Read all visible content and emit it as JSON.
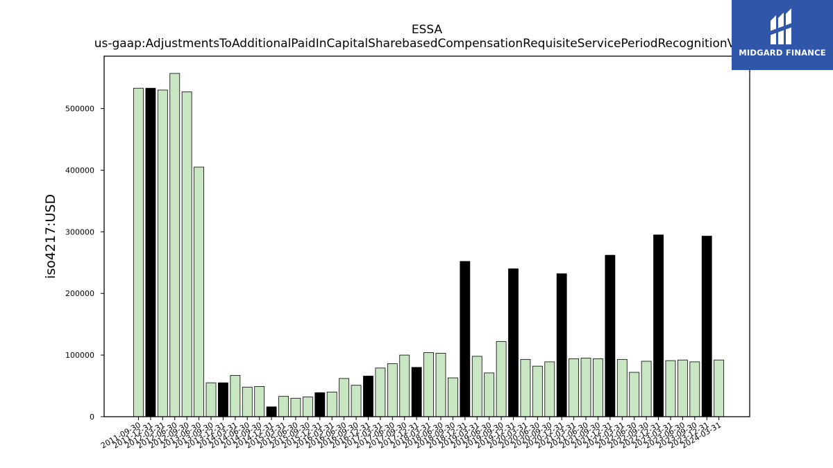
{
  "brand": {
    "name": "MIDGARD FINANCE",
    "bg_color": "#2f56a8"
  },
  "chart_data": {
    "type": "bar",
    "title": "ESSA",
    "subtitle": "us-gaap:AdjustmentsToAdditionalPaidInCapitalSharebasedCompensationRequisiteServicePeriodRecognitionValue",
    "xlabel": "",
    "ylabel": "iso4217:USD",
    "ylim": [
      0,
      585000
    ],
    "yticks": [
      0,
      100000,
      200000,
      300000,
      400000,
      500000
    ],
    "grid": false,
    "colors": {
      "default": "#c8e6c2",
      "highlight": "#000000",
      "edge": "#000000"
    },
    "categories": [
      "2011-09-30",
      "2011-12-31",
      "2012-03-31",
      "2012-06-30",
      "2012-09-30",
      "2013-06-30",
      "2013-09-30",
      "2013-12-31",
      "2014-03-31",
      "2014-06-30",
      "2014-09-30",
      "2014-12-31",
      "2015-03-31",
      "2015-06-30",
      "2015-09-30",
      "2015-12-31",
      "2016-03-31",
      "2016-06-30",
      "2016-09-30",
      "2016-12-31",
      "2017-03-31",
      "2017-06-30",
      "2017-09-30",
      "2017-12-31",
      "2018-03-31",
      "2018-06-30",
      "2018-09-30",
      "2018-12-31",
      "2019-03-31",
      "2019-06-30",
      "2019-09-30",
      "2019-12-31",
      "2020-03-31",
      "2020-06-30",
      "2020-09-30",
      "2020-12-31",
      "2021-03-31",
      "2021-06-30",
      "2021-09-30",
      "2021-12-31",
      "2022-03-31",
      "2022-06-30",
      "2022-09-30",
      "2022-12-31",
      "2023-03-31",
      "2023-06-30",
      "2023-09-30",
      "2023-12-31",
      "2024-03-31"
    ],
    "values": [
      533000,
      533000,
      530000,
      557000,
      527000,
      405000,
      55000,
      55000,
      67000,
      48000,
      49000,
      16000,
      33000,
      30000,
      32000,
      39000,
      40000,
      62000,
      51000,
      66000,
      79000,
      86000,
      100000,
      80000,
      104000,
      103000,
      63000,
      252000,
      98000,
      71000,
      122000,
      240000,
      93000,
      82000,
      89000,
      232000,
      94000,
      95000,
      94000,
      262000,
      93000,
      72000,
      90000,
      295000,
      91000,
      92000,
      89000,
      293000,
      92000
    ],
    "highlighted": [
      false,
      true,
      false,
      false,
      false,
      false,
      false,
      true,
      false,
      false,
      false,
      true,
      false,
      false,
      false,
      true,
      false,
      false,
      false,
      true,
      false,
      false,
      false,
      true,
      false,
      false,
      false,
      true,
      false,
      false,
      false,
      true,
      false,
      false,
      false,
      true,
      false,
      false,
      false,
      true,
      false,
      false,
      false,
      true,
      false,
      false,
      false,
      true,
      false
    ]
  }
}
